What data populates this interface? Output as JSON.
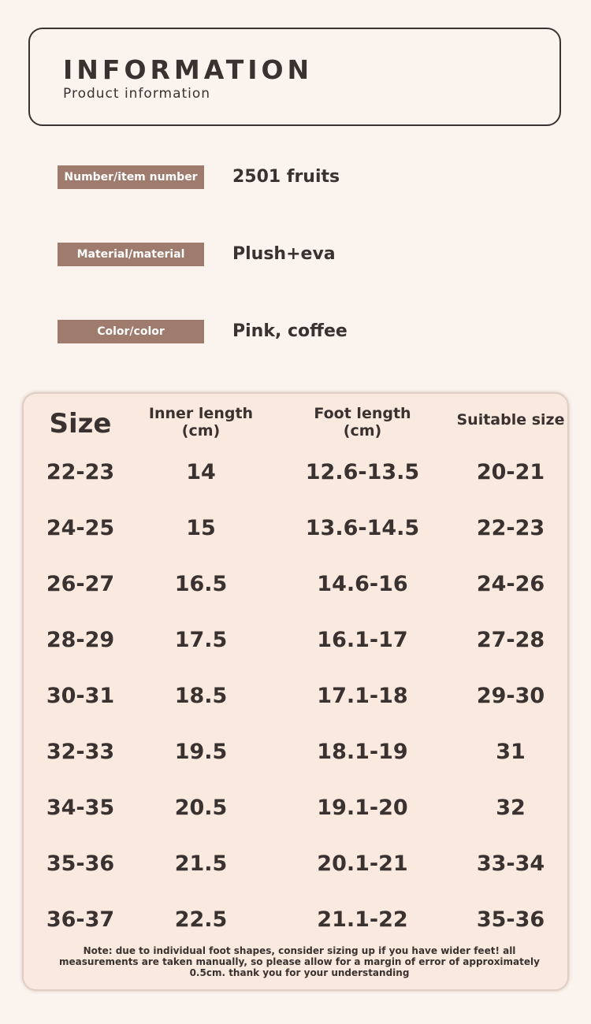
{
  "header": {
    "title": "INFORMATION",
    "subtitle": "Product information"
  },
  "info": [
    {
      "label": "Number/item number",
      "value": "2501 fruits"
    },
    {
      "label": "Material/material",
      "value": "Plush+eva"
    },
    {
      "label": "Color/color",
      "value": "Pink, coffee"
    }
  ],
  "table": {
    "headers": [
      "Size",
      "Inner length\n(cm)",
      "Foot length\n(cm)",
      "Suitable size"
    ],
    "rows": [
      [
        "22-23",
        "14",
        "12.6-13.5",
        "20-21"
      ],
      [
        "24-25",
        "15",
        "13.6-14.5",
        "22-23"
      ],
      [
        "26-27",
        "16.5",
        "14.6-16",
        "24-26"
      ],
      [
        "28-29",
        "17.5",
        "16.1-17",
        "27-28"
      ],
      [
        "30-31",
        "18.5",
        "17.1-18",
        "29-30"
      ],
      [
        "32-33",
        "19.5",
        "18.1-19",
        "31"
      ],
      [
        "34-35",
        "20.5",
        "19.1-20",
        "32"
      ],
      [
        "35-36",
        "21.5",
        "20.1-21",
        "33-34"
      ],
      [
        "36-37",
        "22.5",
        "21.1-22",
        "35-36"
      ]
    ],
    "note": "Note: due to individual foot shapes, consider sizing up if you have wider feet! all measurements are taken manually, so please allow for a margin of error of approximately 0.5cm. thank you for your understanding"
  }
}
